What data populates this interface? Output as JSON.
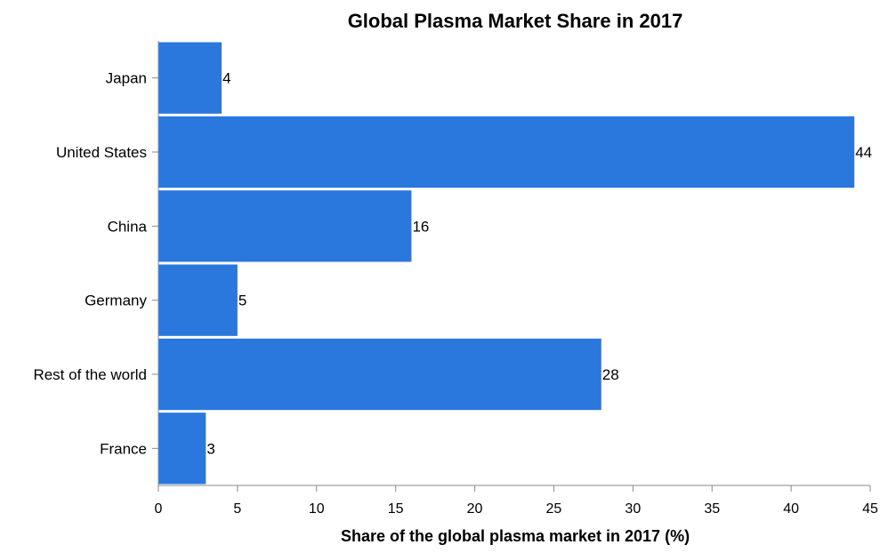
{
  "chart_data": {
    "type": "bar",
    "orientation": "horizontal",
    "title": "Global Plasma Market Share in 2017",
    "xlabel": "Share of the global plasma market in 2017 (%)",
    "ylabel": "",
    "categories": [
      "Japan",
      "United States",
      "China",
      "Germany",
      "Rest of the world",
      "France"
    ],
    "values": [
      4,
      44,
      16,
      5,
      28,
      3
    ],
    "xlim": [
      0,
      45
    ],
    "xticks": [
      0,
      5,
      10,
      15,
      20,
      25,
      30,
      35,
      40,
      45
    ],
    "bar_color": "#2a77de",
    "data_labels": true,
    "grid": false,
    "legend": "none"
  }
}
